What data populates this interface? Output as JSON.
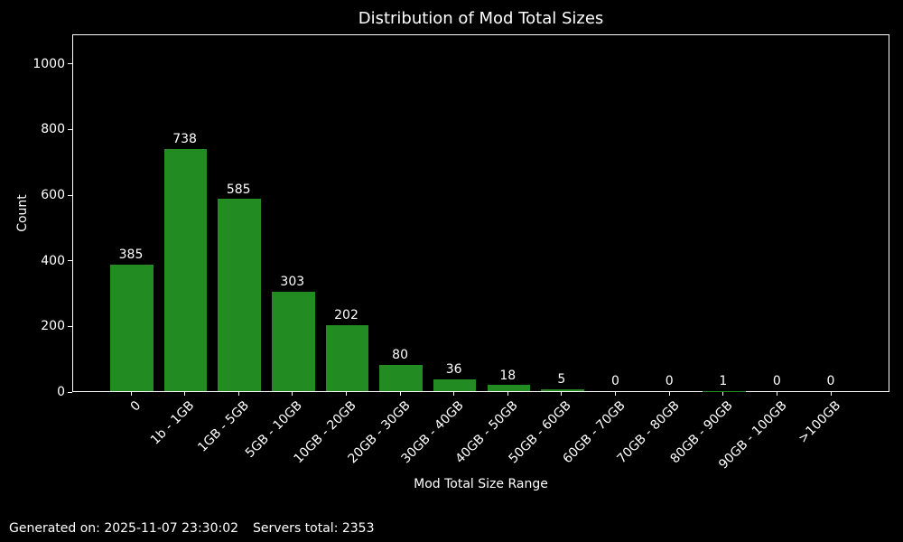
{
  "footer": {
    "generated": "Generated on: 2025-11-07 23:30:02",
    "servers_total": "Servers total: 2353"
  },
  "chart_data": {
    "type": "bar",
    "title": "Distribution of Mod Total Sizes",
    "xlabel": "Mod Total Size Range",
    "ylabel": "Count",
    "categories": [
      "0",
      "1b - 1GB",
      "1GB - 5GB",
      "5GB - 10GB",
      "10GB - 20GB",
      "20GB - 30GB",
      "30GB - 40GB",
      "40GB - 50GB",
      "50GB - 60GB",
      "60GB - 70GB",
      "70GB - 80GB",
      "80GB - 90GB",
      "90GB - 100GB",
      ">100GB"
    ],
    "values": [
      385,
      738,
      585,
      303,
      202,
      80,
      36,
      18,
      5,
      0,
      0,
      1,
      0,
      0
    ],
    "yticks": [
      0,
      200,
      400,
      600,
      800,
      1000
    ],
    "ylim": [
      0,
      1090
    ],
    "bar_color": "#228B22",
    "background_color": "#000000",
    "text_color": "#ffffff",
    "grid": false,
    "legend": false,
    "x_tick_rotation_deg": 45
  }
}
